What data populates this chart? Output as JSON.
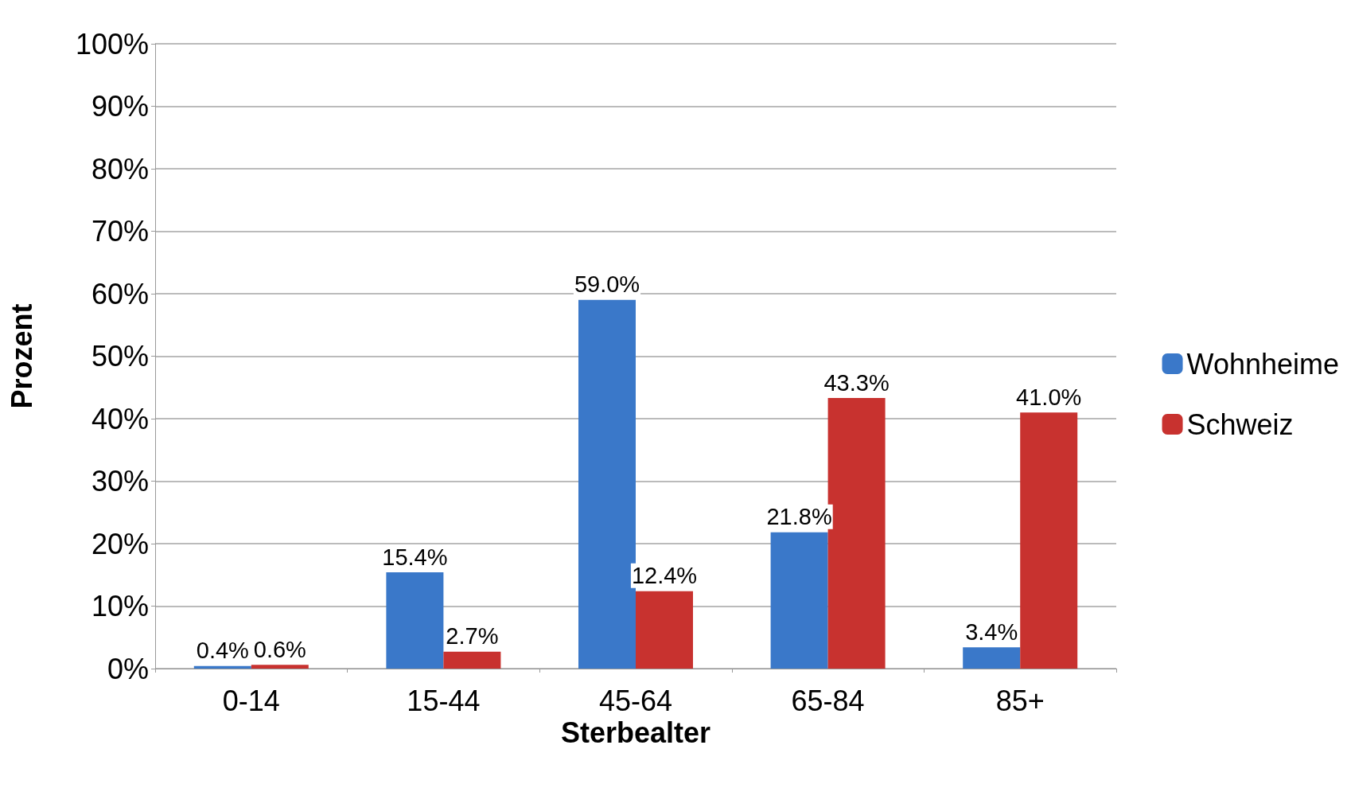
{
  "chart_data": {
    "type": "bar",
    "xlabel": "Sterbealter",
    "ylabel": "Prozent",
    "categories": [
      "0-14",
      "15-44",
      "45-64",
      "65-84",
      "85+"
    ],
    "series": [
      {
        "name": "Wohnheime",
        "color": "#3a78c9",
        "values": [
          0.4,
          15.4,
          59.0,
          21.8,
          3.4
        ],
        "value_labels": [
          "0.4%",
          "15.4%",
          "59.0%",
          "21.8%",
          "3.4%"
        ]
      },
      {
        "name": "Schweiz",
        "color": "#c8322f",
        "values": [
          0.6,
          2.7,
          12.4,
          43.3,
          41.0
        ],
        "value_labels": [
          "0.6%",
          "2.7%",
          "12.4%",
          "43.3%",
          "41.0%"
        ]
      }
    ],
    "ylim": [
      0,
      100
    ],
    "yticks": [
      {
        "value": 0,
        "label": "0%"
      },
      {
        "value": 10,
        "label": "10%"
      },
      {
        "value": 20,
        "label": "20%"
      },
      {
        "value": 30,
        "label": "30%"
      },
      {
        "value": 40,
        "label": "40%"
      },
      {
        "value": 50,
        "label": "50%"
      },
      {
        "value": 60,
        "label": "60%"
      },
      {
        "value": 70,
        "label": "70%"
      },
      {
        "value": 80,
        "label": "80%"
      },
      {
        "value": 90,
        "label": "90%"
      },
      {
        "value": 100,
        "label": "100%"
      }
    ],
    "grid": "y",
    "legend": "right"
  }
}
